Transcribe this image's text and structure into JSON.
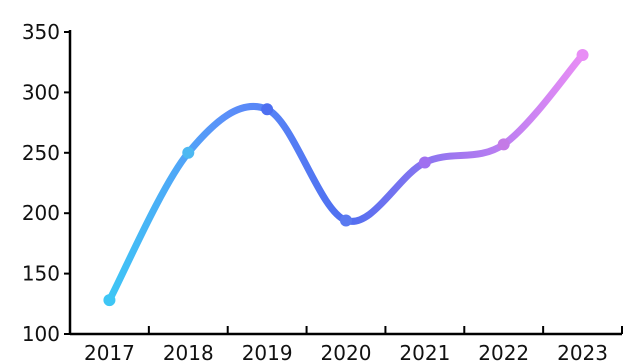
{
  "chart_data": {
    "type": "line",
    "title": "",
    "xlabel": "",
    "ylabel": "",
    "categories": [
      "2017",
      "2018",
      "2019",
      "2020",
      "2021",
      "2022",
      "2023"
    ],
    "series": [
      {
        "values": [
          128,
          250,
          286,
          194,
          242,
          257,
          331
        ]
      }
    ],
    "ylim": [
      100,
      350
    ],
    "yticks": [
      100,
      150,
      200,
      250,
      300,
      350
    ],
    "grid": false,
    "legend": "none",
    "curve": "smooth",
    "gradient_colors": [
      "#3ec6f5",
      "#5b8ff9",
      "#4f6ef0",
      "#a678f0",
      "#e88df5"
    ],
    "marker_colors": [
      "#3ec6f5",
      "#4cb8f2",
      "#4d6ff0",
      "#5a7af0",
      "#a070f0",
      "#c47ae6",
      "#e88df5"
    ]
  }
}
